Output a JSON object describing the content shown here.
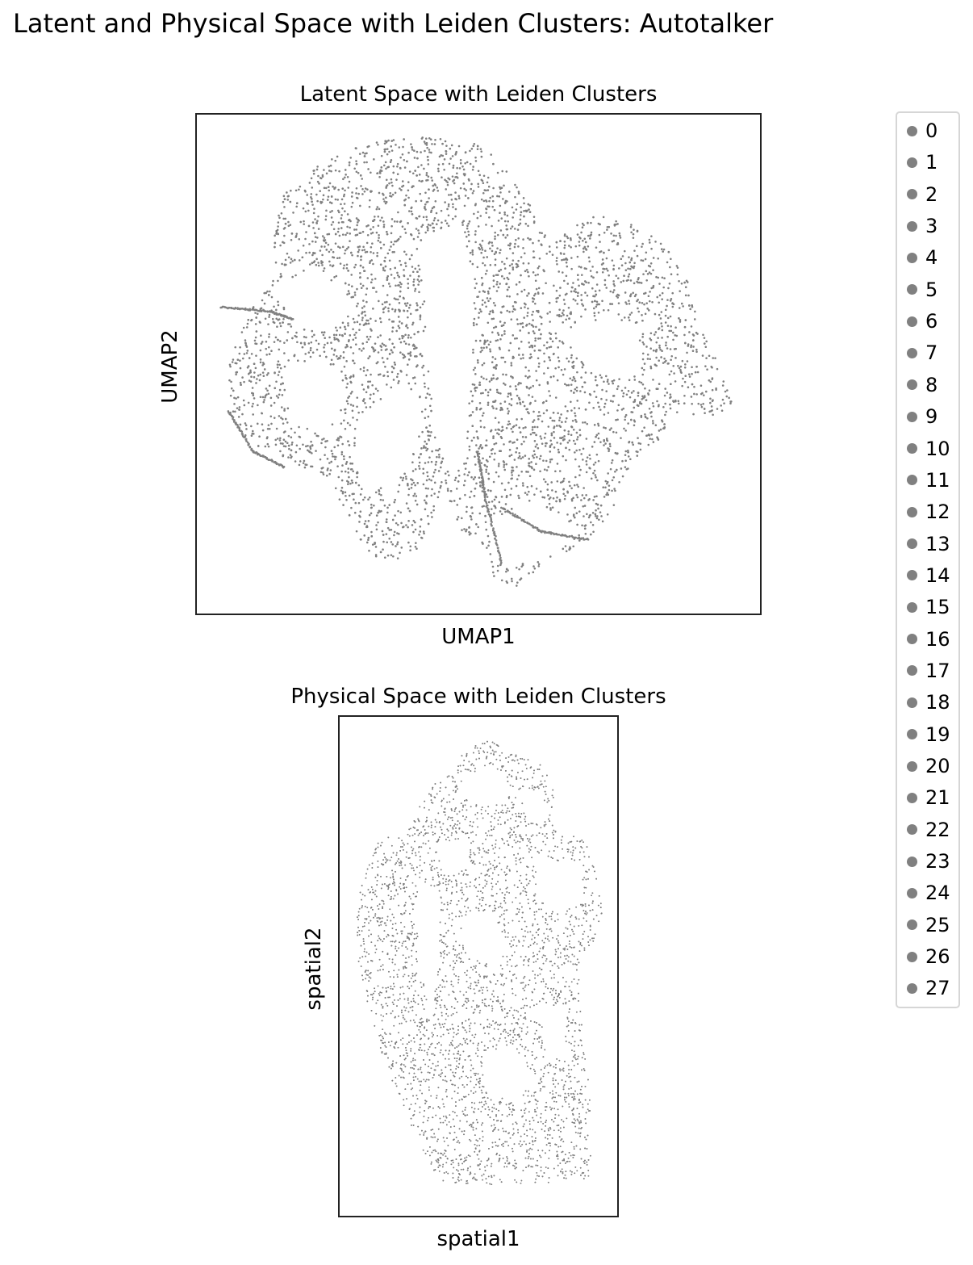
{
  "figure": {
    "suptitle": "Latent and Physical Space with Leiden Clusters: Autotalker"
  },
  "colors": {
    "points": "#808080",
    "frame": "#222222",
    "legend_border": "#d6d6d6"
  },
  "chart_data": [
    {
      "type": "scatter",
      "title": "Latent Space with Leiden Clusters",
      "xlabel": "UMAP1",
      "ylabel": "UMAP2",
      "ticks": "none",
      "grid": false,
      "point_color": "#808080",
      "description_shape": "irregular multi-lobed UMAP embedding with branching filaments",
      "legend_position": "outside-right"
    },
    {
      "type": "scatter",
      "title": "Physical Space with Leiden Clusters",
      "xlabel": "spatial1",
      "ylabel": "spatial2",
      "ticks": "none",
      "grid": false,
      "point_color": "#808080",
      "legend_position": "outside-right"
    }
  ],
  "legend": {
    "items": [
      "0",
      "1",
      "2",
      "3",
      "4",
      "5",
      "6",
      "7",
      "8",
      "9",
      "10",
      "11",
      "12",
      "13",
      "14",
      "15",
      "16",
      "17",
      "18",
      "19",
      "20",
      "21",
      "22",
      "23",
      "24",
      "25",
      "26",
      "27"
    ]
  }
}
